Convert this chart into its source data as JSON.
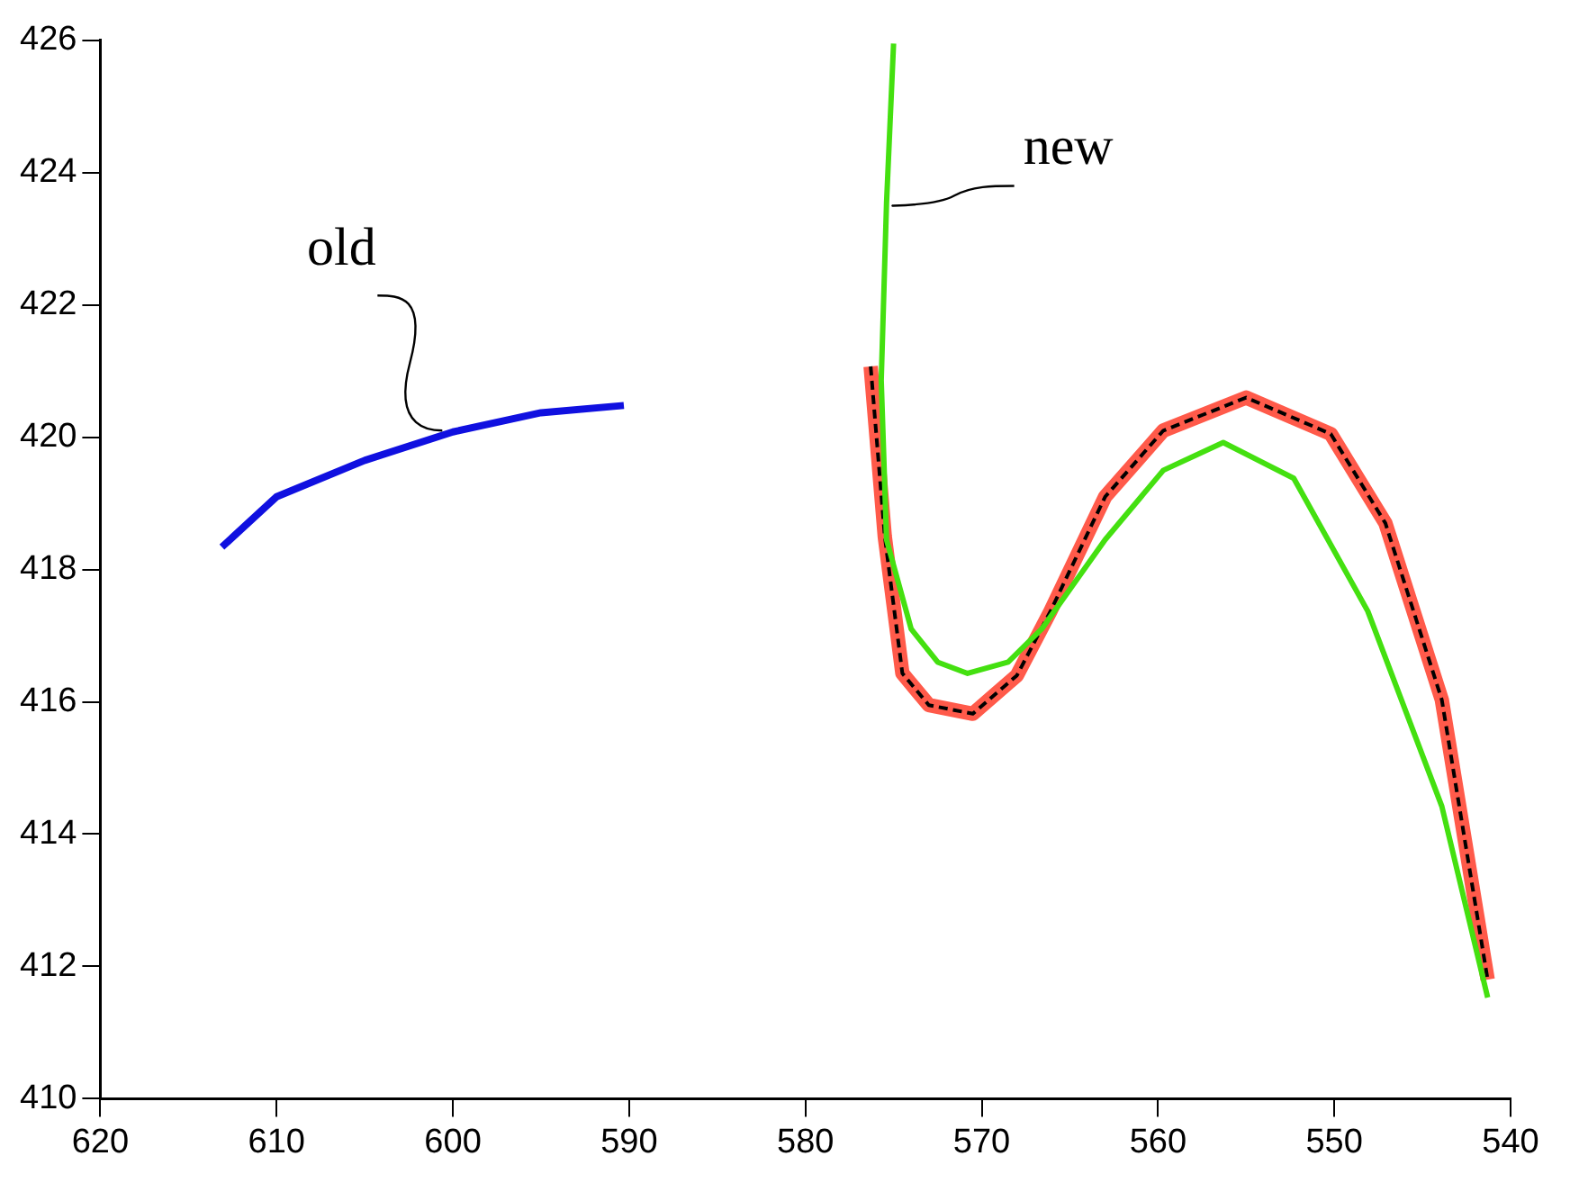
{
  "chart_data": {
    "type": "line",
    "xlim": [
      620,
      540
    ],
    "ylim": [
      410,
      426
    ],
    "xticks": [
      620,
      610,
      600,
      590,
      580,
      570,
      560,
      550,
      540
    ],
    "yticks": [
      410,
      412,
      414,
      416,
      418,
      420,
      422,
      424,
      426
    ],
    "grid": false,
    "legend": false,
    "marker": "none",
    "series": [
      {
        "color": "#1010e0",
        "x": [
          613.1,
          610,
          605,
          600,
          595,
          590.3
        ],
        "values": [
          418.34,
          419.1,
          419.65,
          420.08,
          420.37,
          420.48
        ]
      },
      {
        "color": "#ff5a4a",
        "x": [
          576.3,
          575.5,
          574.5,
          573,
          570.5,
          568,
          566.1,
          563,
          559.7,
          555,
          550.2,
          547.1,
          543.9,
          541.3
        ],
        "values": [
          421.07,
          418.5,
          416.43,
          415.95,
          415.82,
          416.4,
          417.37,
          419.1,
          420.1,
          420.6,
          420.05,
          418.7,
          416.03,
          411.8
        ]
      },
      {
        "color": "#000000",
        "line_style": "dashed",
        "x": [
          576.3,
          575.5,
          574.5,
          573,
          570.5,
          568,
          566.1,
          563,
          559.7,
          555,
          550.2,
          547.1,
          543.9,
          541.3
        ],
        "values": [
          421.07,
          418.5,
          416.43,
          415.95,
          415.82,
          416.4,
          417.37,
          419.1,
          420.1,
          420.6,
          420.05,
          418.7,
          416.03,
          411.8
        ]
      },
      {
        "color": "#44e010",
        "x": [
          575.0,
          575.4,
          575.7,
          575.4,
          574.0,
          572.5,
          570.8,
          568.5,
          566.6,
          563,
          559.7,
          556.3,
          552.3,
          548.1,
          543.9,
          541.3
        ],
        "values": [
          425.95,
          423.54,
          420.86,
          418.45,
          417.1,
          416.6,
          416.43,
          416.6,
          417.1,
          418.45,
          419.5,
          419.92,
          419.38,
          417.37,
          414.42,
          411.53
        ]
      }
    ],
    "annotations": [
      {
        "text": "old",
        "x": 600.6,
        "y": 420.1
      },
      {
        "text": "new",
        "x": 575,
        "y": 423.5
      }
    ]
  }
}
